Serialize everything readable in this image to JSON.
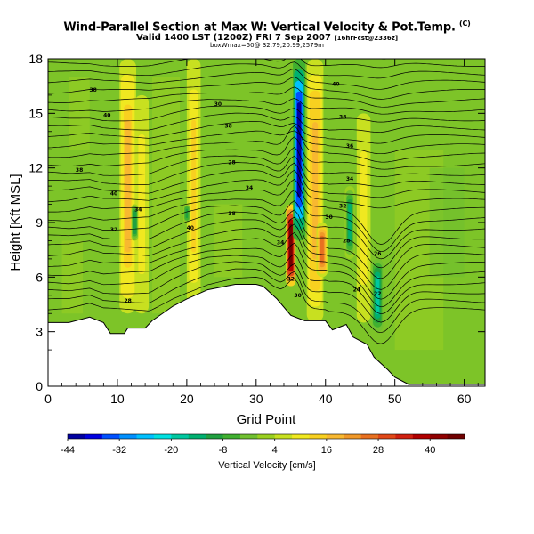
{
  "header": {
    "title": "Wind-Parallel Section at Max W: Vertical Velocity & Pot.Temp.",
    "title_mark": "(C)",
    "subtitle": "Valid 1400 LST (1200Z) FRI 7 Sep 2007",
    "subtitle_suffix": "[16hrFcst@2336z]",
    "subtitle2": "boxWmax=50@ 32.79,20.99,2579m"
  },
  "chart_data": {
    "type": "heatmap",
    "title": "Wind-Parallel Section at Max W: Vertical Velocity & Pot.Temp.",
    "xlabel": "Grid Point",
    "ylabel": "Height [Kft MSL]",
    "xlim": [
      0,
      63
    ],
    "ylim": [
      0,
      18
    ],
    "x_ticks": [
      "0",
      "10",
      "20",
      "30",
      "40",
      "50",
      "60"
    ],
    "y_ticks": [
      "0",
      "3",
      "6",
      "9",
      "12",
      "15",
      "18"
    ],
    "x_tick_values": [
      0,
      10,
      20,
      30,
      40,
      50,
      60
    ],
    "y_tick_values": [
      0,
      3,
      6,
      9,
      12,
      15,
      18
    ],
    "colorbar": {
      "label": "Vertical Velocity [cm/s]",
      "min": -44,
      "max": 48,
      "tick_labels": [
        "-44",
        "-32",
        "-20",
        "-8",
        "4",
        "16",
        "28",
        "40"
      ],
      "tick_values": [
        -44,
        -32,
        -20,
        -8,
        4,
        16,
        28,
        40
      ],
      "colors": [
        "#0000a0",
        "#0000e0",
        "#0050ff",
        "#0090ff",
        "#00c0ff",
        "#00e0e0",
        "#00c8a0",
        "#00b070",
        "#20a040",
        "#40b030",
        "#70c030",
        "#9ad020",
        "#c8e020",
        "#f0e820",
        "#f8d020",
        "#f8b830",
        "#f09828",
        "#e87020",
        "#e04818",
        "#d02010",
        "#b00000",
        "#900000",
        "#700000"
      ]
    },
    "terrain_kft": [
      [
        0,
        3.5
      ],
      [
        3,
        3.5
      ],
      [
        6,
        3.8
      ],
      [
        8,
        3.5
      ],
      [
        9,
        2.9
      ],
      [
        11,
        2.9
      ],
      [
        11.5,
        3.2
      ],
      [
        14,
        3.2
      ],
      [
        15,
        3.6
      ],
      [
        18,
        4.4
      ],
      [
        20,
        4.8
      ],
      [
        23,
        5.3
      ],
      [
        27,
        5.6
      ],
      [
        30,
        5.6
      ],
      [
        31,
        5.5
      ],
      [
        33,
        4.8
      ],
      [
        35,
        3.9
      ],
      [
        37,
        3.6
      ],
      [
        38,
        3.6
      ],
      [
        40,
        3.6
      ],
      [
        41,
        3.1
      ],
      [
        43,
        3.4
      ],
      [
        44,
        2.7
      ],
      [
        46,
        2.3
      ],
      [
        47,
        1.6
      ],
      [
        49,
        0.9
      ],
      [
        50,
        0.5
      ],
      [
        52,
        0.1
      ],
      [
        63,
        0.1
      ]
    ],
    "updrafts": [
      {
        "x": 35,
        "ybot": 5.5,
        "ytop": 10,
        "w": 0.7,
        "value": 48
      },
      {
        "x": 11.5,
        "ybot": 4,
        "ytop": 18,
        "w": 1.2,
        "value": 16
      },
      {
        "x": 13.5,
        "ybot": 4,
        "ytop": 16,
        "w": 1.0,
        "value": 10
      },
      {
        "x": 21,
        "ybot": 4,
        "ytop": 18,
        "w": 1.0,
        "value": 12
      },
      {
        "x": 38.5,
        "ybot": 3.5,
        "ytop": 18,
        "w": 1.2,
        "value": 18
      },
      {
        "x": 45.5,
        "ybot": 3.5,
        "ytop": 15,
        "w": 1.0,
        "value": 10
      },
      {
        "x": 39.5,
        "ybot": 6,
        "ytop": 9,
        "w": 0.8,
        "value": 24
      }
    ],
    "downdrafts": [
      {
        "x": 36.2,
        "ybot": 8,
        "ytop": 18,
        "w": 0.9,
        "value": -44
      },
      {
        "x": 12.5,
        "ybot": 8,
        "ytop": 10,
        "w": 0.5,
        "value": -12
      },
      {
        "x": 20,
        "ybot": 9,
        "ytop": 10,
        "w": 0.5,
        "value": -10
      },
      {
        "x": 43.5,
        "ybot": 7,
        "ytop": 11,
        "w": 0.7,
        "value": -16
      },
      {
        "x": 47.5,
        "ybot": 3,
        "ytop": 7,
        "w": 0.8,
        "value": -18
      }
    ],
    "isentrope_labels": [
      {
        "x": 6.5,
        "y": 16.2,
        "text": "38"
      },
      {
        "x": 8.5,
        "y": 14.8,
        "text": "40"
      },
      {
        "x": 4.5,
        "y": 11.8,
        "text": "38"
      },
      {
        "x": 9.5,
        "y": 10.5,
        "text": "40"
      },
      {
        "x": 13,
        "y": 9.6,
        "text": "34"
      },
      {
        "x": 9.5,
        "y": 8.5,
        "text": "32"
      },
      {
        "x": 20.5,
        "y": 8.6,
        "text": "40"
      },
      {
        "x": 11.5,
        "y": 4.6,
        "text": "28"
      },
      {
        "x": 24.5,
        "y": 15.4,
        "text": "30"
      },
      {
        "x": 26,
        "y": 14.2,
        "text": "38"
      },
      {
        "x": 26.5,
        "y": 12.2,
        "text": "28"
      },
      {
        "x": 29,
        "y": 10.8,
        "text": "34"
      },
      {
        "x": 26.5,
        "y": 9.4,
        "text": "38"
      },
      {
        "x": 33.5,
        "y": 7.8,
        "text": "34"
      },
      {
        "x": 35,
        "y": 5.8,
        "text": "32"
      },
      {
        "x": 36,
        "y": 4.9,
        "text": "30"
      },
      {
        "x": 41.5,
        "y": 16.5,
        "text": "40"
      },
      {
        "x": 42.5,
        "y": 14.7,
        "text": "38"
      },
      {
        "x": 43.5,
        "y": 13.1,
        "text": "36"
      },
      {
        "x": 43.5,
        "y": 11.3,
        "text": "34"
      },
      {
        "x": 42.5,
        "y": 9.8,
        "text": "32"
      },
      {
        "x": 40.5,
        "y": 9.2,
        "text": "30"
      },
      {
        "x": 43,
        "y": 7.9,
        "text": "28"
      },
      {
        "x": 47.5,
        "y": 7.2,
        "text": "26"
      },
      {
        "x": 44.5,
        "y": 5.2,
        "text": "24"
      },
      {
        "x": 47.5,
        "y": 5.0,
        "text": "22"
      }
    ]
  }
}
